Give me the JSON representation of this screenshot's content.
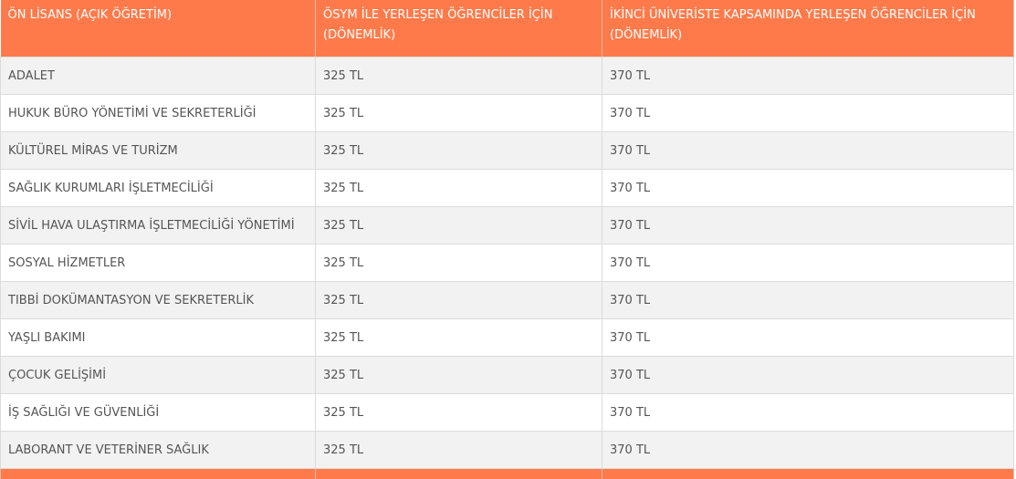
{
  "table": {
    "header": [
      "ÖN LİSANS (AÇIK ÖĞRETİM)",
      "ÖSYM İLE YERLEŞEN ÖĞRENCİLER İÇİN (DÖNEMLİK)",
      "İKİNCİ ÜNİVERİSTE KAPSAMINDA YERLEŞEN ÖĞRENCİLER İÇİN (DÖNEMLİK)"
    ],
    "rows": [
      [
        "ADALET",
        "325 TL",
        "370 TL"
      ],
      [
        "HUKUK BÜRO YÖNETİMİ VE SEKRETERLİĞİ",
        "325 TL",
        "370 TL"
      ],
      [
        "KÜLTÜREL MİRAS VE TURİZM",
        "325 TL",
        "370 TL"
      ],
      [
        "SAĞLIK KURUMLARI İŞLETMECİLİĞİ",
        "325 TL",
        "370 TL"
      ],
      [
        "SİVİL HAVA ULAŞTIRMA İŞLETMECİLİĞİ YÖNETİMİ",
        "325 TL",
        "370 TL"
      ],
      [
        "SOSYAL HİZMETLER",
        "325 TL",
        "370 TL"
      ],
      [
        "TIBBİ DOKÜMANTASYON VE SEKRETERLİK",
        "325 TL",
        "370 TL"
      ],
      [
        "YAŞLI BAKIMI",
        "325 TL",
        "370 TL"
      ],
      [
        "ÇOCUK GELİŞİMİ",
        "325 TL",
        "370 TL"
      ],
      [
        "İŞ SAĞLIĞI VE GÜVENLİĞİ",
        "325 TL",
        "370 TL"
      ],
      [
        "LABORANT VE VETERİNER SAĞLIK",
        "325 TL",
        "370 TL"
      ]
    ]
  }
}
